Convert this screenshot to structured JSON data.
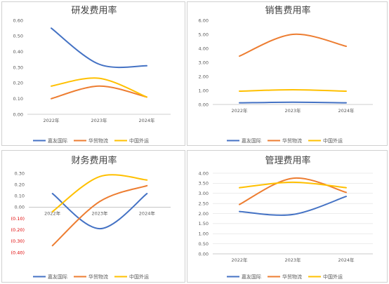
{
  "colors": {
    "series": [
      "#4472C4",
      "#ED7D31",
      "#FFC000"
    ],
    "grid": "#d9d9d9",
    "axis": "#bfbfbf",
    "text": "#595959",
    "negative": "#e00000"
  },
  "chart_data": [
    {
      "type": "line",
      "title": "研发费用率",
      "categories": [
        "2022年",
        "2023年",
        "2024年"
      ],
      "series": [
        {
          "name": "嘉友国际",
          "values": [
            0.55,
            0.32,
            0.31
          ]
        },
        {
          "name": "华贸物流",
          "values": [
            0.1,
            0.18,
            0.11
          ]
        },
        {
          "name": "中国外运",
          "values": [
            0.18,
            0.23,
            0.11
          ]
        }
      ],
      "ylim": [
        0,
        0.6
      ],
      "yticks": [
        "0.00",
        "0.10",
        "0.20",
        "0.30",
        "0.40",
        "0.50",
        "0.60"
      ],
      "grid": false,
      "legend": "bottom"
    },
    {
      "type": "line",
      "title": "销售费用率",
      "categories": [
        "2022年",
        "2023年",
        "2024年"
      ],
      "series": [
        {
          "name": "嘉友国际",
          "values": [
            0.12,
            0.16,
            0.12
          ]
        },
        {
          "name": "华贸物流",
          "values": [
            3.45,
            5.0,
            4.15
          ]
        },
        {
          "name": "中国外运",
          "values": [
            0.95,
            1.05,
            0.95
          ]
        }
      ],
      "ylim": [
        0,
        6
      ],
      "yticks": [
        "0.00",
        "1.00",
        "2.00",
        "3.00",
        "4.00",
        "5.00",
        "6.00"
      ],
      "grid": false,
      "legend": "bottom"
    },
    {
      "type": "line",
      "title": "财务费用率",
      "categories": [
        "2022年",
        "2023年",
        "2024年"
      ],
      "series": [
        {
          "name": "嘉友国际",
          "values": [
            0.12,
            -0.19,
            0.12
          ]
        },
        {
          "name": "华贸物流",
          "values": [
            -0.34,
            0.05,
            0.19
          ]
        },
        {
          "name": "中国外运",
          "values": [
            -0.04,
            0.27,
            0.24
          ]
        }
      ],
      "ylim": [
        -0.4,
        0.3
      ],
      "yticks": [
        "0.30",
        "0.20",
        "0.10",
        "0.00",
        "(0.10)",
        "(0.20)",
        "(0.30)",
        "(0.40)"
      ],
      "grid": false,
      "legend": "bottom"
    },
    {
      "type": "line",
      "title": "管理费用率",
      "categories": [
        "2022年",
        "2023年",
        "2024年"
      ],
      "series": [
        {
          "name": "嘉友国际",
          "values": [
            2.1,
            1.95,
            2.85
          ]
        },
        {
          "name": "华贸物流",
          "values": [
            2.45,
            3.75,
            3.05
          ]
        },
        {
          "name": "中国外运",
          "values": [
            3.28,
            3.55,
            3.28
          ]
        }
      ],
      "ylim": [
        0,
        4
      ],
      "yticks": [
        "0.00",
        "0.50",
        "1.00",
        "1.50",
        "2.00",
        "2.50",
        "3.00",
        "3.50",
        "4.00"
      ],
      "grid": true,
      "legend": "bottom"
    }
  ]
}
